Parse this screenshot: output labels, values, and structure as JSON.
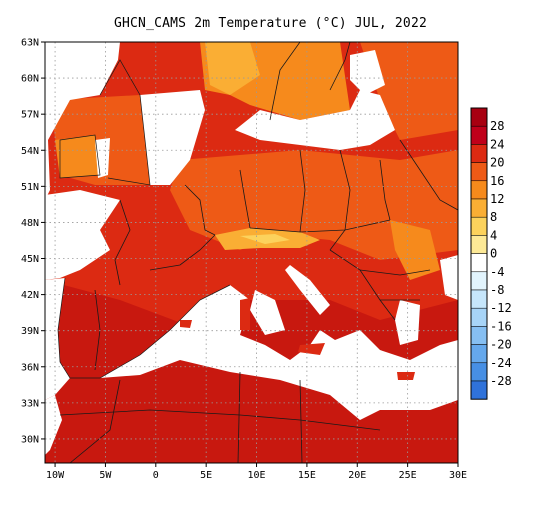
{
  "title": "GHCN_CAMS 2m Temperature (°C) JUL, 2022",
  "map": {
    "lon_range": [
      -11,
      30
    ],
    "lat_range": [
      28,
      63
    ],
    "lat_ticks": [
      "63N",
      "60N",
      "57N",
      "54N",
      "51N",
      "48N",
      "45N",
      "42N",
      "39N",
      "36N",
      "33N",
      "30N"
    ],
    "lon_ticks": [
      "10W",
      "5W",
      "0",
      "5E",
      "10E",
      "15E",
      "20E",
      "25E",
      "30E"
    ],
    "gridlines": true,
    "colors": {
      "ocean": "#ffffff",
      "grid": "#9a9a9a",
      "border": "#1a1a1a"
    }
  },
  "colorbar": {
    "levels": [
      {
        "label": "28",
        "color": "#c0001a"
      },
      {
        "label": "24",
        "color": "#dc2a12"
      },
      {
        "label": "20",
        "color": "#ee5a16"
      },
      {
        "label": "16",
        "color": "#f68a1c"
      },
      {
        "label": "12",
        "color": "#faae34"
      },
      {
        "label": "8",
        "color": "#fcd25c"
      },
      {
        "label": "4",
        "color": "#fde996"
      },
      {
        "label": "0",
        "color": "#ffffff"
      },
      {
        "label": "-4",
        "color": "#e2f4fd"
      },
      {
        "label": "-8",
        "color": "#c6e6fb"
      },
      {
        "label": "-12",
        "color": "#a7d4f7"
      },
      {
        "label": "-16",
        "color": "#86bff2"
      },
      {
        "label": "-20",
        "color": "#65a8ec"
      },
      {
        "label": "-24",
        "color": "#478fe4"
      },
      {
        "label": "-28",
        "color": "#2f72da"
      }
    ],
    "top_color": "#a80011"
  }
}
